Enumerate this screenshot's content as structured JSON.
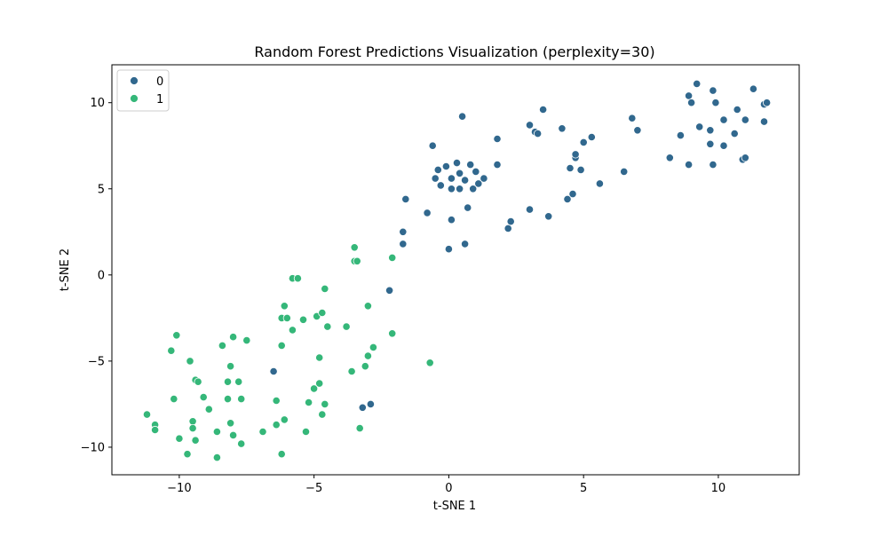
{
  "chart_data": {
    "type": "scatter",
    "title": "Random Forest Predictions Visualization (perplexity=30)",
    "xlabel": "t-SNE 1",
    "ylabel": "t-SNE 2",
    "xlim": [
      -12.5,
      13
    ],
    "ylim": [
      -11.6,
      12.2
    ],
    "xticks": [
      -10,
      -5,
      0,
      5,
      10
    ],
    "yticks": [
      -10,
      -5,
      0,
      5,
      10
    ],
    "xtick_labels": [
      "−10",
      "−5",
      "0",
      "5",
      "10"
    ],
    "ytick_labels": [
      "−10",
      "−5",
      "0",
      "5",
      "10"
    ],
    "grid": false,
    "legend_position": "top-left",
    "series": [
      {
        "name": "0",
        "color": "#31688e",
        "points": [
          [
            -6.5,
            -5.6
          ],
          [
            -3.2,
            -7.7
          ],
          [
            -2.9,
            -7.5
          ],
          [
            -2.2,
            -0.9
          ],
          [
            -1.7,
            1.8
          ],
          [
            -1.7,
            2.5
          ],
          [
            -1.6,
            4.4
          ],
          [
            -0.8,
            3.6
          ],
          [
            -0.6,
            7.5
          ],
          [
            -0.5,
            5.6
          ],
          [
            -0.4,
            6.1
          ],
          [
            -0.3,
            5.2
          ],
          [
            -0.1,
            6.3
          ],
          [
            0.0,
            1.5
          ],
          [
            0.1,
            3.2
          ],
          [
            0.1,
            5.6
          ],
          [
            0.1,
            5.0
          ],
          [
            0.3,
            6.5
          ],
          [
            0.4,
            5.0
          ],
          [
            0.4,
            5.9
          ],
          [
            0.5,
            9.2
          ],
          [
            0.6,
            1.8
          ],
          [
            0.6,
            5.5
          ],
          [
            0.7,
            3.9
          ],
          [
            0.8,
            6.4
          ],
          [
            0.9,
            5.0
          ],
          [
            1.0,
            6.0
          ],
          [
            1.1,
            5.3
          ],
          [
            1.3,
            5.6
          ],
          [
            1.8,
            6.4
          ],
          [
            1.8,
            7.9
          ],
          [
            2.2,
            2.7
          ],
          [
            2.3,
            3.1
          ],
          [
            3.0,
            3.8
          ],
          [
            3.0,
            8.7
          ],
          [
            3.2,
            8.3
          ],
          [
            3.3,
            8.2
          ],
          [
            3.5,
            9.6
          ],
          [
            3.7,
            3.4
          ],
          [
            4.2,
            8.5
          ],
          [
            4.4,
            4.4
          ],
          [
            4.5,
            6.2
          ],
          [
            4.6,
            4.7
          ],
          [
            4.7,
            6.8
          ],
          [
            4.7,
            7.0
          ],
          [
            4.9,
            6.1
          ],
          [
            5.0,
            7.7
          ],
          [
            5.3,
            8.0
          ],
          [
            5.6,
            5.3
          ],
          [
            6.5,
            6.0
          ],
          [
            6.8,
            9.1
          ],
          [
            7.0,
            8.4
          ],
          [
            8.2,
            6.8
          ],
          [
            8.6,
            8.1
          ],
          [
            8.9,
            6.4
          ],
          [
            8.9,
            10.4
          ],
          [
            9.0,
            10.0
          ],
          [
            9.2,
            11.1
          ],
          [
            9.3,
            8.6
          ],
          [
            9.7,
            8.4
          ],
          [
            9.7,
            7.6
          ],
          [
            9.8,
            6.4
          ],
          [
            9.8,
            10.7
          ],
          [
            9.9,
            10.0
          ],
          [
            10.2,
            7.5
          ],
          [
            10.2,
            9.0
          ],
          [
            10.6,
            8.2
          ],
          [
            10.7,
            9.6
          ],
          [
            10.9,
            6.7
          ],
          [
            11.0,
            6.8
          ],
          [
            11.0,
            9.0
          ],
          [
            11.3,
            10.8
          ],
          [
            11.7,
            8.9
          ],
          [
            11.7,
            9.9
          ],
          [
            11.8,
            10.0
          ]
        ]
      },
      {
        "name": "1",
        "color": "#35b779",
        "points": [
          [
            -11.2,
            -8.1
          ],
          [
            -10.9,
            -8.7
          ],
          [
            -10.9,
            -9.0
          ],
          [
            -10.3,
            -4.4
          ],
          [
            -10.2,
            -7.2
          ],
          [
            -10.1,
            -3.5
          ],
          [
            -10.0,
            -9.5
          ],
          [
            -9.7,
            -10.4
          ],
          [
            -9.6,
            -5.0
          ],
          [
            -9.5,
            -8.5
          ],
          [
            -9.5,
            -8.9
          ],
          [
            -9.4,
            -9.6
          ],
          [
            -9.4,
            -6.1
          ],
          [
            -9.3,
            -6.2
          ],
          [
            -9.1,
            -7.1
          ],
          [
            -8.9,
            -7.8
          ],
          [
            -8.6,
            -9.1
          ],
          [
            -8.6,
            -10.6
          ],
          [
            -8.4,
            -4.1
          ],
          [
            -8.2,
            -6.2
          ],
          [
            -8.2,
            -7.2
          ],
          [
            -8.1,
            -5.3
          ],
          [
            -8.1,
            -8.6
          ],
          [
            -8.0,
            -3.6
          ],
          [
            -8.0,
            -9.3
          ],
          [
            -7.8,
            -6.2
          ],
          [
            -7.7,
            -7.2
          ],
          [
            -7.7,
            -9.8
          ],
          [
            -7.5,
            -3.8
          ],
          [
            -6.9,
            -9.1
          ],
          [
            -6.4,
            -7.3
          ],
          [
            -6.4,
            -8.7
          ],
          [
            -6.2,
            -10.4
          ],
          [
            -6.2,
            -4.1
          ],
          [
            -6.2,
            -2.5
          ],
          [
            -6.1,
            -8.4
          ],
          [
            -6.1,
            -1.8
          ],
          [
            -6.0,
            -2.5
          ],
          [
            -5.8,
            -3.2
          ],
          [
            -5.8,
            -0.2
          ],
          [
            -5.6,
            -0.2
          ],
          [
            -5.4,
            -2.6
          ],
          [
            -5.3,
            -9.1
          ],
          [
            -5.2,
            -7.4
          ],
          [
            -5.0,
            -6.6
          ],
          [
            -4.9,
            -2.4
          ],
          [
            -4.8,
            -4.8
          ],
          [
            -4.8,
            -6.3
          ],
          [
            -4.7,
            -8.1
          ],
          [
            -4.7,
            -2.2
          ],
          [
            -4.6,
            -0.8
          ],
          [
            -4.6,
            -7.5
          ],
          [
            -4.5,
            -3.0
          ],
          [
            -3.8,
            -3.0
          ],
          [
            -3.6,
            -5.6
          ],
          [
            -3.5,
            1.6
          ],
          [
            -3.5,
            0.8
          ],
          [
            -3.4,
            0.8
          ],
          [
            -3.3,
            -8.9
          ],
          [
            -3.1,
            -5.3
          ],
          [
            -3.0,
            -4.7
          ],
          [
            -3.0,
            -1.8
          ],
          [
            -2.8,
            -4.2
          ],
          [
            -2.1,
            1.0
          ],
          [
            -2.1,
            -3.4
          ],
          [
            -0.7,
            -5.1
          ]
        ]
      }
    ]
  }
}
